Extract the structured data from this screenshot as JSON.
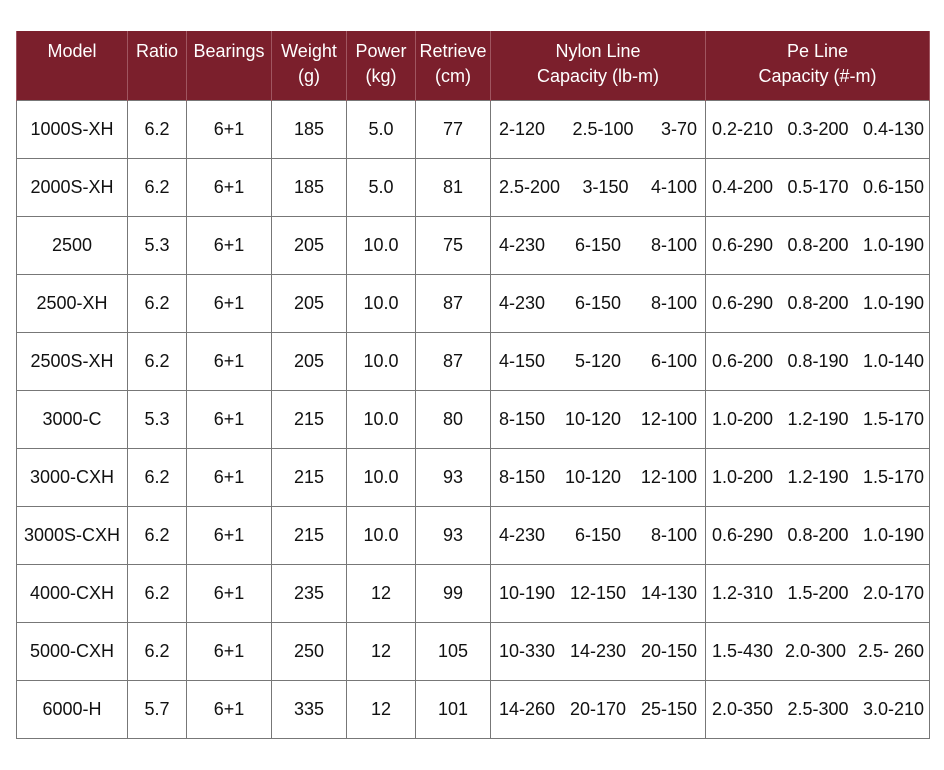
{
  "colors": {
    "header_bg": "#7b1f2c",
    "header_text": "#ffffff",
    "border": "#777777"
  },
  "headers": [
    {
      "line1": "Model",
      "line2": ""
    },
    {
      "line1": "Ratio",
      "line2": ""
    },
    {
      "line1": "Bearings",
      "line2": ""
    },
    {
      "line1": "Weight",
      "line2": "(g)"
    },
    {
      "line1": "Power",
      "line2": "(kg)"
    },
    {
      "line1": "Retrieve",
      "line2": "(cm)"
    },
    {
      "line1": "Nylon  Line",
      "line2": "Capacity  (lb-m)"
    },
    {
      "line1": "Pe Line",
      "line2": "Capacity  (#-m)"
    }
  ],
  "rows": [
    {
      "model": "1000S-XH",
      "ratio": "6.2",
      "bearings": "6+1",
      "weight": "185",
      "power": "5.0",
      "retrieve": "77",
      "nylon": [
        "2-120",
        "2.5-100",
        "3-70"
      ],
      "pe": [
        "0.2-210",
        "0.3-200",
        "0.4-130"
      ]
    },
    {
      "model": "2000S-XH",
      "ratio": "6.2",
      "bearings": "6+1",
      "weight": "185",
      "power": "5.0",
      "retrieve": "81",
      "nylon": [
        "2.5-200",
        "3-150",
        "4-100"
      ],
      "pe": [
        "0.4-200",
        "0.5-170",
        "0.6-150"
      ]
    },
    {
      "model": "2500",
      "ratio": "5.3",
      "bearings": "6+1",
      "weight": "205",
      "power": "10.0",
      "retrieve": "75",
      "nylon": [
        "4-230",
        "6-150",
        "8-100"
      ],
      "pe": [
        "0.6-290",
        "0.8-200",
        "1.0-190"
      ]
    },
    {
      "model": "2500-XH",
      "ratio": "6.2",
      "bearings": "6+1",
      "weight": "205",
      "power": "10.0",
      "retrieve": "87",
      "nylon": [
        "4-230",
        "6-150",
        "8-100"
      ],
      "pe": [
        "0.6-290",
        "0.8-200",
        "1.0-190"
      ]
    },
    {
      "model": "2500S-XH",
      "ratio": "6.2",
      "bearings": "6+1",
      "weight": "205",
      "power": "10.0",
      "retrieve": "87",
      "nylon": [
        "4-150",
        "5-120",
        "6-100"
      ],
      "pe": [
        "0.6-200",
        "0.8-190",
        "1.0-140"
      ]
    },
    {
      "model": "3000-C",
      "ratio": "5.3",
      "bearings": "6+1",
      "weight": "215",
      "power": "10.0",
      "retrieve": "80",
      "nylon": [
        "8-150",
        "10-120",
        "12-100"
      ],
      "pe": [
        "1.0-200",
        "1.2-190",
        "1.5-170"
      ]
    },
    {
      "model": "3000-CXH",
      "ratio": "6.2",
      "bearings": "6+1",
      "weight": "215",
      "power": "10.0",
      "retrieve": "93",
      "nylon": [
        "8-150",
        "10-120",
        "12-100"
      ],
      "pe": [
        "1.0-200",
        "1.2-190",
        "1.5-170"
      ]
    },
    {
      "model": "3000S-CXH",
      "ratio": "6.2",
      "bearings": "6+1",
      "weight": "215",
      "power": "10.0",
      "retrieve": "93",
      "nylon": [
        "4-230",
        "6-150",
        "8-100"
      ],
      "pe": [
        "0.6-290",
        "0.8-200",
        "1.0-190"
      ]
    },
    {
      "model": "4000-CXH",
      "ratio": "6.2",
      "bearings": "6+1",
      "weight": "235",
      "power": "12",
      "retrieve": "99",
      "nylon": [
        "10-190",
        "12-150",
        "14-130"
      ],
      "pe": [
        "1.2-310",
        "1.5-200",
        "2.0-170"
      ]
    },
    {
      "model": "5000-CXH",
      "ratio": "6.2",
      "bearings": "6+1",
      "weight": "250",
      "power": "12",
      "retrieve": "105",
      "nylon": [
        "10-330",
        "14-230",
        "20-150"
      ],
      "pe": [
        "1.5-430",
        "2.0-300",
        "2.5- 260"
      ]
    },
    {
      "model": "6000-H",
      "ratio": "5.7",
      "bearings": "6+1",
      "weight": "335",
      "power": "12",
      "retrieve": "101",
      "nylon": [
        "14-260",
        "20-170",
        "25-150"
      ],
      "pe": [
        "2.0-350",
        "2.5-300",
        "3.0-210"
      ]
    }
  ]
}
